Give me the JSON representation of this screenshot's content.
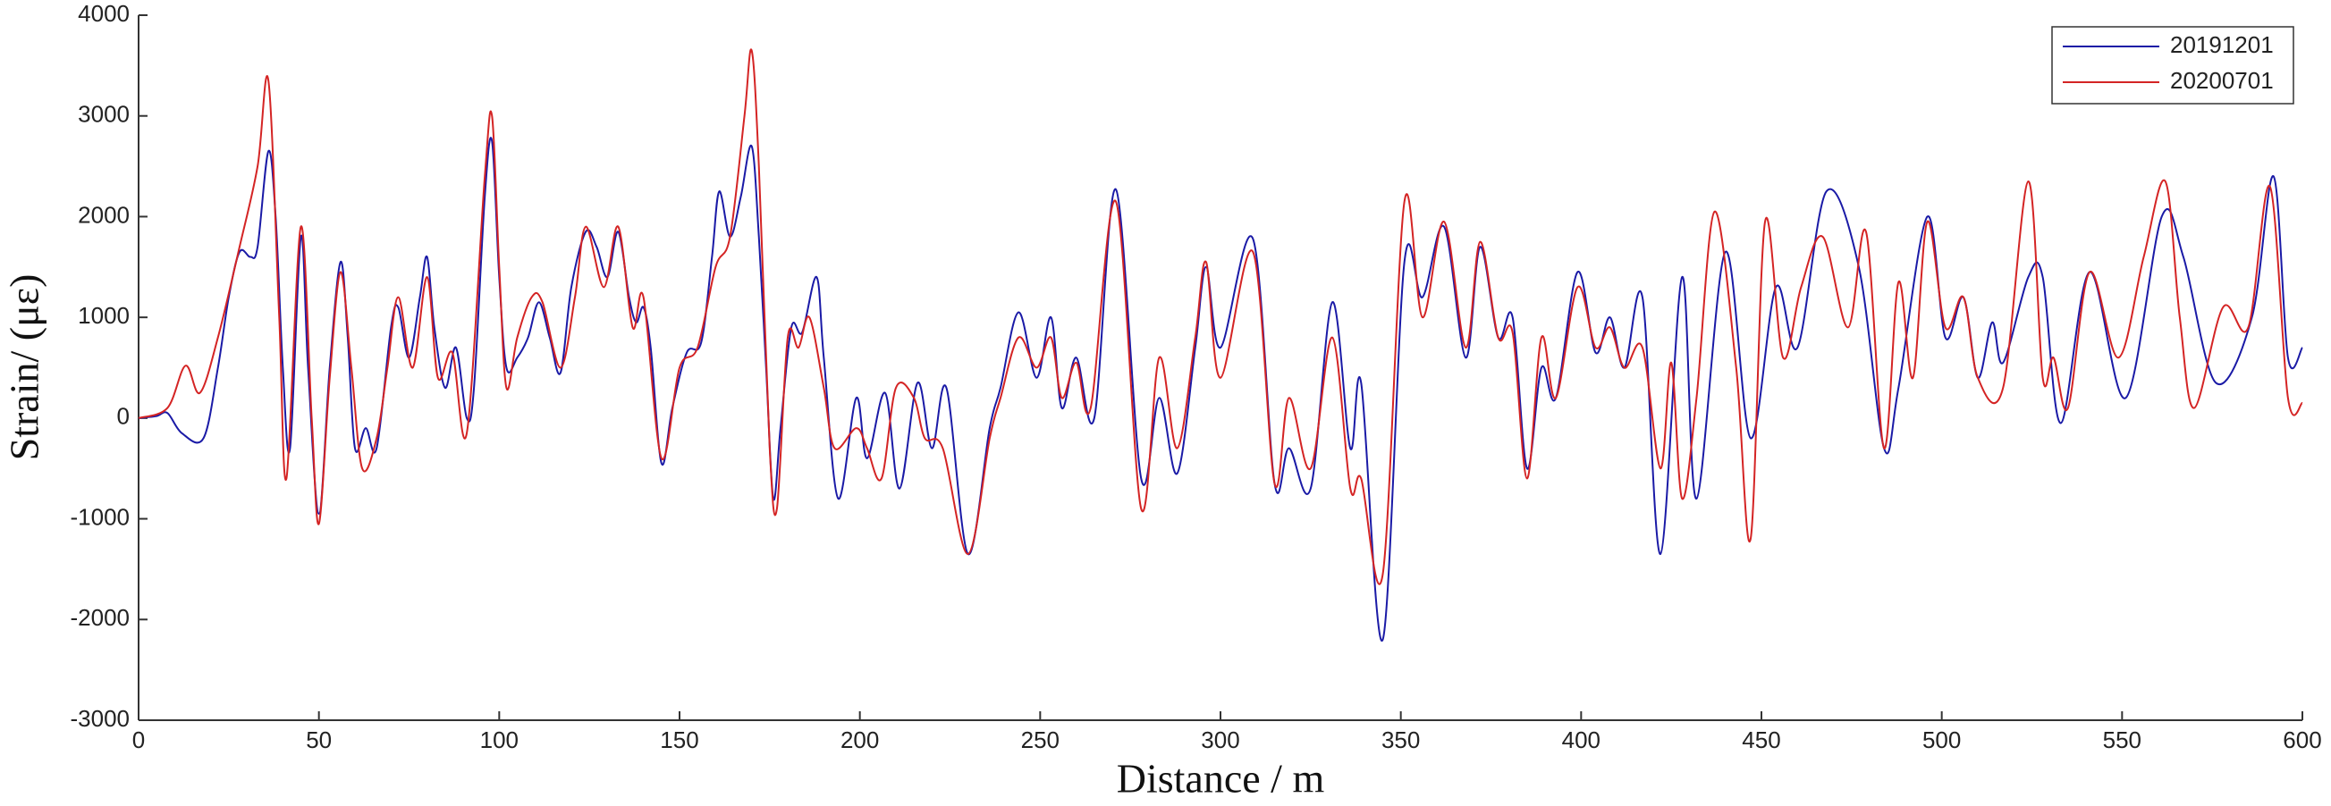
{
  "chart_data": {
    "type": "line",
    "x_label": "Distance / m",
    "y_label": "Strain/ (με)",
    "xlim": [
      0,
      600
    ],
    "xticks": [
      0,
      50,
      100,
      150,
      200,
      250,
      300,
      350,
      400,
      450,
      500,
      550,
      600
    ],
    "ylim": [
      -3000,
      4000
    ],
    "yticks": [
      -3000,
      -2000,
      -1000,
      0,
      1000,
      2000,
      3000,
      4000
    ],
    "legend": "upper right",
    "series": [
      {
        "name": "20191201",
        "color": "#1a1aa6",
        "x": [
          0,
          5,
          8,
          12,
          18,
          22,
          25,
          28,
          31,
          33,
          36,
          38,
          40,
          42,
          45,
          47,
          50,
          53,
          56,
          58,
          60,
          63,
          66,
          70,
          72,
          75,
          78,
          80,
          82,
          85,
          88,
          91,
          93,
          96,
          98,
          100,
          102,
          105,
          108,
          111,
          114,
          117,
          120,
          124,
          127,
          130,
          133,
          136,
          138,
          140,
          142,
          145,
          148,
          152,
          156,
          159,
          161,
          164,
          167,
          170,
          172,
          174,
          176,
          178,
          181,
          184,
          188,
          190,
          194,
          199,
          202,
          207,
          211,
          216,
          220,
          224,
          230,
          236,
          239,
          244,
          249,
          253,
          256,
          260,
          265,
          271,
          278,
          283,
          288,
          293,
          296,
          300,
          309,
          315,
          319,
          325,
          331,
          336,
          339,
          345,
          351,
          356,
          362,
          368,
          372,
          377,
          381,
          385,
          389,
          393,
          399,
          404,
          408,
          412,
          417,
          422,
          428,
          432,
          440,
          447,
          454,
          460,
          468,
          477,
          484,
          488,
          496,
          501,
          506,
          510,
          514,
          517,
          524,
          528,
          533,
          541,
          551,
          561,
          567,
          576,
          586,
          592,
          596,
          600
        ],
        "values": [
          0,
          20,
          50,
          -150,
          -200,
          500,
          1200,
          1650,
          1600,
          1700,
          2650,
          2000,
          500,
          -300,
          1800,
          500,
          -950,
          500,
          1550,
          800,
          -300,
          -100,
          -300,
          900,
          1100,
          600,
          1200,
          1600,
          900,
          300,
          700,
          0,
          300,
          2200,
          2750,
          1400,
          500,
          600,
          800,
          1150,
          800,
          450,
          1300,
          1850,
          1700,
          1400,
          1850,
          1200,
          950,
          1100,
          700,
          -450,
          100,
          650,
          750,
          1600,
          2250,
          1800,
          2200,
          2700,
          1800,
          500,
          -800,
          -100,
          900,
          850,
          1400,
          600,
          -800,
          200,
          -400,
          250,
          -700,
          350,
          -300,
          300,
          -1350,
          -100,
          300,
          1050,
          400,
          1000,
          100,
          600,
          0,
          2270,
          -600,
          200,
          -550,
          700,
          1500,
          700,
          1780,
          -650,
          -300,
          -700,
          1150,
          -300,
          350,
          -2200,
          1550,
          1200,
          1900,
          600,
          1700,
          800,
          1000,
          -500,
          500,
          200,
          1450,
          650,
          1000,
          500,
          1200,
          -1350,
          1400,
          -800,
          1650,
          -200,
          1300,
          700,
          2250,
          1500,
          -300,
          300,
          2000,
          800,
          1200,
          400,
          950,
          550,
          1400,
          1400,
          -50,
          1450,
          200,
          2000,
          1600,
          350,
          1000,
          2400,
          600,
          700
        ]
      },
      {
        "name": "20200701",
        "color": "#d42424",
        "x": [
          0,
          8,
          13,
          17,
          22,
          28,
          33,
          36,
          39,
          41,
          45,
          48,
          50,
          53,
          56,
          59,
          62,
          66,
          69,
          72,
          76,
          80,
          83,
          87,
          91,
          96,
          98,
          100,
          102,
          105,
          109,
          112,
          117,
          121,
          124,
          129,
          133,
          137,
          140,
          145,
          150,
          155,
          160,
          164,
          168,
          170,
          172,
          175,
          177,
          180,
          183,
          186,
          190,
          193,
          199,
          202,
          206,
          210,
          215,
          218,
          223,
          230,
          236,
          239,
          244,
          249,
          253,
          256,
          260,
          264,
          271,
          278,
          283,
          288,
          293,
          296,
          300,
          309,
          315,
          319,
          325,
          331,
          336,
          339,
          345,
          351,
          356,
          362,
          368,
          372,
          377,
          381,
          385,
          389,
          393,
          399,
          404,
          408,
          412,
          417,
          422,
          425,
          428,
          432,
          437,
          443,
          447,
          451,
          456,
          461,
          467,
          474,
          479,
          484,
          488,
          492,
          496,
          501,
          506,
          510,
          517,
          524,
          528,
          531,
          535,
          541,
          549,
          556,
          562,
          566,
          570,
          578,
          585,
          591,
          596,
          600
        ],
        "values": [
          0,
          100,
          520,
          250,
          800,
          1700,
          2500,
          3350,
          1000,
          -600,
          1900,
          0,
          -1050,
          400,
          1450,
          500,
          -500,
          -200,
          500,
          1200,
          500,
          1400,
          400,
          650,
          -150,
          2400,
          3000,
          1500,
          300,
          800,
          1200,
          1150,
          500,
          1200,
          1900,
          1300,
          1900,
          900,
          1200,
          -400,
          500,
          700,
          1500,
          1800,
          3000,
          3650,
          2500,
          -300,
          -900,
          800,
          700,
          1000,
          300,
          -300,
          -100,
          -300,
          -600,
          300,
          200,
          -200,
          -300,
          -1350,
          -200,
          200,
          800,
          500,
          800,
          200,
          550,
          100,
          2150,
          -900,
          600,
          -300,
          800,
          1550,
          400,
          1650,
          -650,
          200,
          -500,
          800,
          -700,
          -600,
          -1550,
          2150,
          1000,
          1950,
          700,
          1750,
          800,
          850,
          -600,
          800,
          200,
          1300,
          700,
          900,
          500,
          700,
          -500,
          550,
          -800,
          200,
          2050,
          500,
          -1200,
          1950,
          600,
          1300,
          1800,
          900,
          1850,
          -300,
          1350,
          400,
          1950,
          900,
          1200,
          400,
          300,
          2350,
          400,
          600,
          100,
          1450,
          600,
          1600,
          2350,
          1000,
          100,
          1100,
          900,
          2300,
          200,
          150
        ]
      }
    ]
  }
}
